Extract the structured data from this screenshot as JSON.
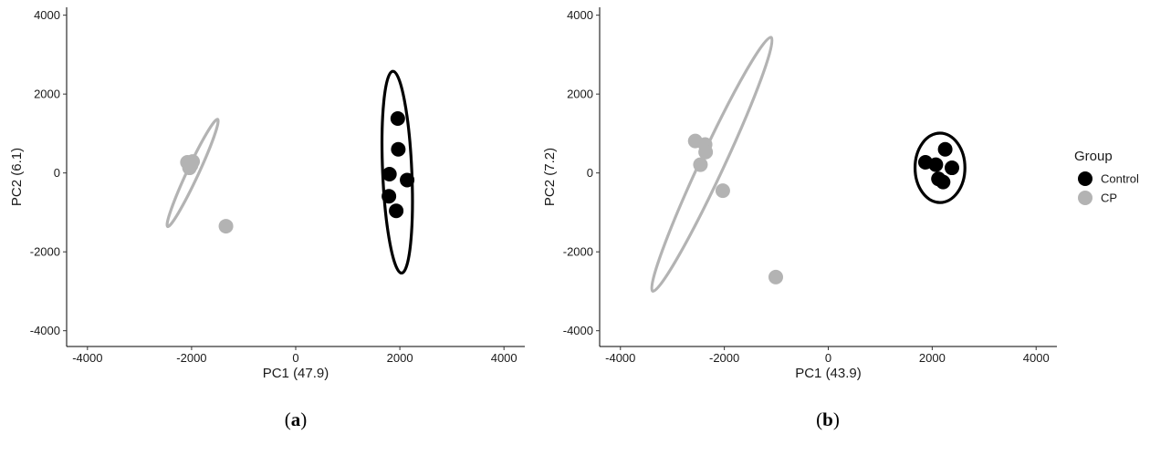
{
  "legend": {
    "title": "Group",
    "items": [
      {
        "label": "Control",
        "color": "#000000"
      },
      {
        "label": "CP",
        "color": "#b3b3b3"
      }
    ]
  },
  "chart_data": [
    {
      "type": "scatter",
      "panel_label": "a",
      "xlabel": "PC1 (47.9)",
      "ylabel": "PC2 (6.1)",
      "xlim": [
        -4400,
        4400
      ],
      "ylim": [
        -4400,
        4200
      ],
      "xticks": [
        -4000,
        -2000,
        0,
        2000,
        4000
      ],
      "yticks": [
        -4000,
        -2000,
        0,
        2000,
        4000
      ],
      "grid": false,
      "series": [
        {
          "name": "Control",
          "color": "#000000",
          "points": [
            [
              1960,
              1380
            ],
            [
              1970,
              600
            ],
            [
              1800,
              -30
            ],
            [
              2140,
              -180
            ],
            [
              1790,
              -590
            ],
            [
              1930,
              -960
            ]
          ],
          "ellipse": {
            "center": [
              1950,
              20
            ],
            "semi_axes": [
              280,
              2560
            ],
            "rotation_deg": -2.5
          }
        },
        {
          "name": "CP",
          "color": "#b3b3b3",
          "points": [
            [
              -2080,
              270
            ],
            [
              -1980,
              290
            ],
            [
              -2040,
              130
            ],
            [
              -2010,
              200
            ],
            [
              -1340,
              -1350
            ]
          ],
          "ellipse": {
            "center": [
              -1980,
              0
            ],
            "semi_axes": [
              110,
              1500
            ],
            "rotation_deg": 25
          }
        }
      ]
    },
    {
      "type": "scatter",
      "panel_label": "b",
      "xlabel": "PC1 (43.9)",
      "ylabel": "PC2 (7.2)",
      "xlim": [
        -4400,
        4400
      ],
      "ylim": [
        -4400,
        4200
      ],
      "xticks": [
        -4000,
        -2000,
        0,
        2000,
        4000
      ],
      "yticks": [
        -4000,
        -2000,
        0,
        2000,
        4000
      ],
      "grid": false,
      "series": [
        {
          "name": "Control",
          "color": "#000000",
          "points": [
            [
              2250,
              600
            ],
            [
              1870,
              270
            ],
            [
              2070,
              210
            ],
            [
              2380,
              130
            ],
            [
              2120,
              -150
            ],
            [
              2210,
              -230
            ]
          ],
          "ellipse": {
            "center": [
              2150,
              130
            ],
            "semi_axes": [
              480,
              880
            ],
            "rotation_deg": 0
          }
        },
        {
          "name": "CP",
          "color": "#b3b3b3",
          "points": [
            [
              -2560,
              810
            ],
            [
              -2370,
              720
            ],
            [
              -2360,
              530
            ],
            [
              -2460,
              210
            ],
            [
              -2030,
              -450
            ],
            [
              -1010,
              -2640
            ]
          ],
          "ellipse": {
            "center": [
              -2240,
              220
            ],
            "semi_axes": [
              230,
              3550
            ],
            "rotation_deg": 25
          }
        }
      ]
    }
  ]
}
